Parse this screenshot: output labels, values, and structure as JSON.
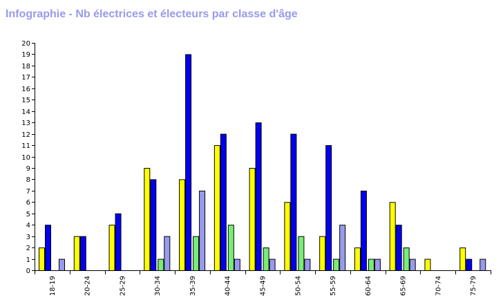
{
  "chart_data": {
    "type": "bar",
    "title": "Infographie - Nb électrices et électeurs par classe d'âge",
    "xlabel": "",
    "ylabel": "",
    "ylim": [
      0,
      20
    ],
    "yticks": [
      0,
      1,
      2,
      3,
      4,
      5,
      6,
      7,
      8,
      9,
      10,
      11,
      12,
      13,
      14,
      15,
      16,
      17,
      18,
      19,
      20
    ],
    "grid": false,
    "legend": "none",
    "categories": [
      "18-19",
      "20-24",
      "25-29",
      "30-34",
      "35-39",
      "40-44",
      "45-49",
      "50-54",
      "55-59",
      "60-64",
      "65-69",
      "70-74",
      "75-79"
    ],
    "series": [
      {
        "color": "#ffff00",
        "values": [
          2,
          3,
          4,
          9,
          8,
          11,
          9,
          6,
          3,
          2,
          6,
          1,
          2
        ]
      },
      {
        "color": "#0000ee",
        "values": [
          4,
          3,
          5,
          8,
          19,
          12,
          13,
          12,
          11,
          7,
          4,
          0,
          1
        ]
      },
      {
        "color": "#77ee77",
        "values": [
          0,
          0,
          0,
          1,
          3,
          4,
          2,
          3,
          1,
          1,
          2,
          0,
          0
        ]
      },
      {
        "color": "#9999ee",
        "values": [
          1,
          0,
          0,
          3,
          7,
          1,
          1,
          1,
          4,
          1,
          1,
          0,
          1
        ]
      }
    ]
  }
}
